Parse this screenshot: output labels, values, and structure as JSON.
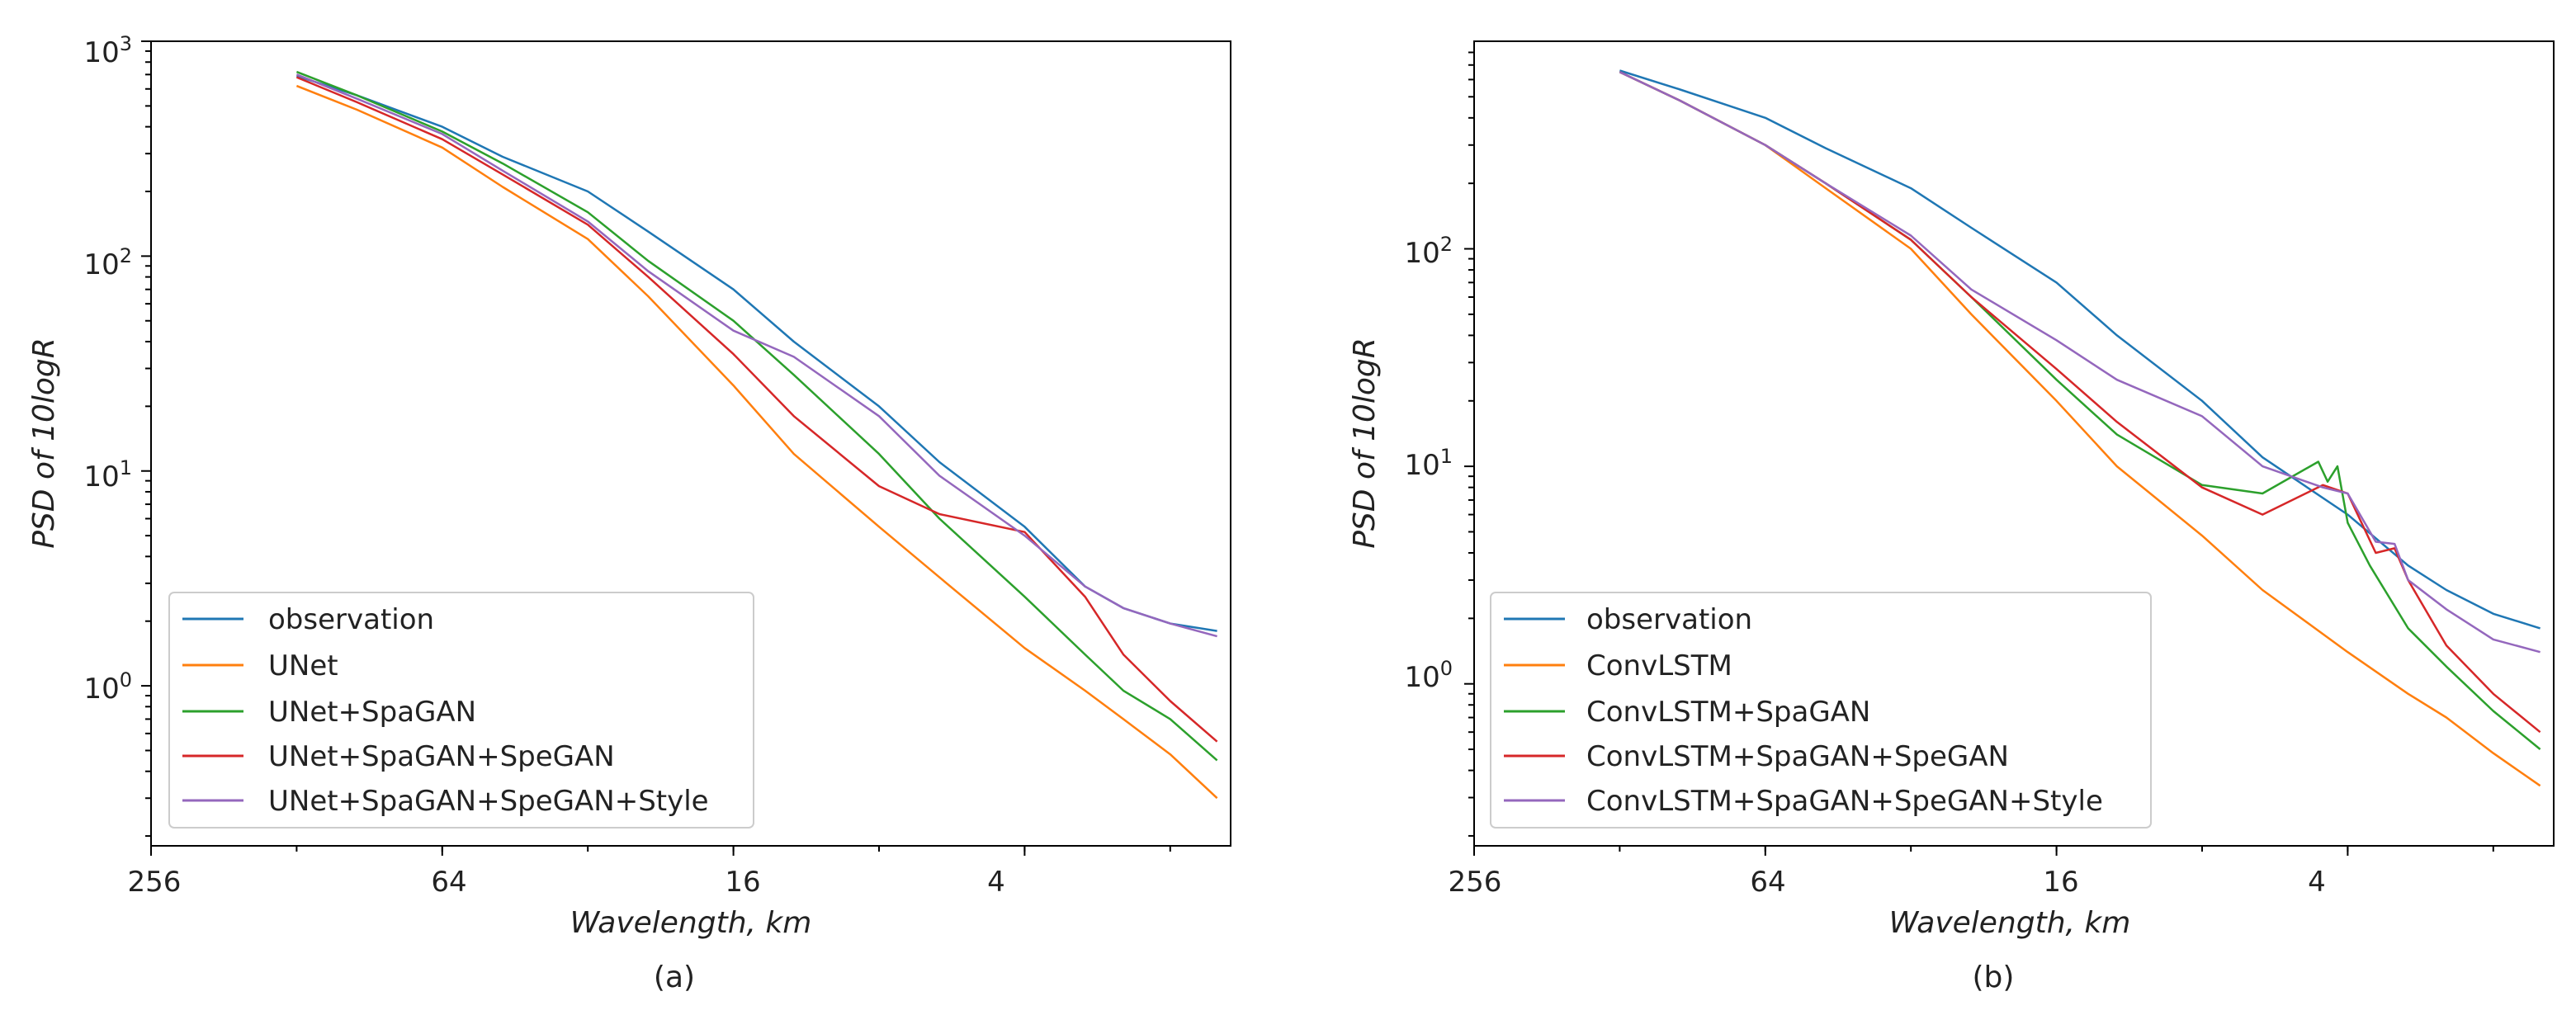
{
  "figure": {
    "panels": [
      {
        "caption": "(a)",
        "ylabel": "PSD of 10logR",
        "xlabel": "Wavelength, km",
        "legend_position": "lower-left",
        "chart_data": {
          "type": "line",
          "xscale": "log2-reversed",
          "yscale": "log10",
          "x_unit": "km",
          "xlim": [
            256,
            1.5
          ],
          "ylim": [
            0.18,
            1000
          ],
          "xticks": [
            "256",
            "64",
            "16",
            "4"
          ],
          "yticks": [
            {
              "base": "10",
              "exp": "3"
            },
            {
              "base": "10",
              "exp": "2"
            },
            {
              "base": "10",
              "exp": "1"
            },
            {
              "base": "10",
              "exp": "0"
            }
          ],
          "series": [
            {
              "name": "observation",
              "color": "#1f77b4",
              "x": [
                128,
                96,
                64,
                48,
                32,
                24,
                16,
                12,
                8,
                6,
                4,
                3,
                2.5,
                2,
                1.6
              ],
              "y": [
                690,
                560,
                400,
                290,
                200,
                130,
                70,
                40,
                20,
                11,
                5.5,
                2.9,
                2.3,
                1.95,
                1.8
              ]
            },
            {
              "name": "UNet",
              "color": "#ff7f0e",
              "x": [
                128,
                96,
                64,
                48,
                32,
                24,
                16,
                12,
                8,
                6,
                4,
                3,
                2.5,
                2,
                1.6
              ],
              "y": [
                620,
                480,
                320,
                210,
                120,
                65,
                25,
                12,
                5.5,
                3.2,
                1.5,
                0.95,
                0.7,
                0.48,
                0.3
              ]
            },
            {
              "name": "UNet+SpaGAN",
              "color": "#2ca02c",
              "x": [
                128,
                96,
                64,
                48,
                32,
                24,
                16,
                12,
                8,
                6,
                4,
                3,
                2.5,
                2,
                1.6
              ],
              "y": [
                720,
                560,
                380,
                270,
                160,
                95,
                50,
                28,
                12,
                6,
                2.6,
                1.4,
                0.95,
                0.7,
                0.45
              ]
            },
            {
              "name": "UNet+SpaGAN+SpeGAN",
              "color": "#d62728",
              "x": [
                128,
                96,
                64,
                48,
                32,
                24,
                16,
                12,
                8,
                6,
                4,
                3,
                2.5,
                2,
                1.6
              ],
              "y": [
                680,
                520,
                350,
                240,
                140,
                80,
                35,
                18,
                8.5,
                6.3,
                5.2,
                2.6,
                1.4,
                0.85,
                0.55
              ]
            },
            {
              "name": "UNet+SpaGAN+SpeGAN+Style",
              "color": "#9467bd",
              "x": [
                128,
                96,
                64,
                48,
                32,
                24,
                16,
                12,
                8,
                6,
                4,
                3,
                2.5,
                2,
                1.6
              ],
              "y": [
                700,
                540,
                370,
                250,
                145,
                85,
                45,
                34,
                18,
                9.5,
                5,
                2.9,
                2.3,
                1.95,
                1.7
              ]
            }
          ]
        }
      },
      {
        "caption": "(b)",
        "ylabel": "PSD of 10logR",
        "xlabel": "Wavelength, km",
        "legend_position": "lower-left",
        "chart_data": {
          "type": "line",
          "xscale": "log2-reversed",
          "yscale": "log10",
          "x_unit": "km",
          "xlim": [
            256,
            1.5
          ],
          "ylim": [
            0.18,
            900
          ],
          "xticks": [
            "256",
            "64",
            "16",
            "4"
          ],
          "yticks": [
            {
              "base": "10",
              "exp": "2"
            },
            {
              "base": "10",
              "exp": "1"
            },
            {
              "base": "10",
              "exp": "0"
            }
          ],
          "series": [
            {
              "name": "observation",
              "color": "#1f77b4",
              "x": [
                128,
                96,
                64,
                48,
                32,
                24,
                16,
                12,
                8,
                6,
                4,
                3,
                2.5,
                2,
                1.6
              ],
              "y": [
                660,
                540,
                400,
                290,
                190,
                125,
                70,
                40,
                20,
                11,
                6,
                3.5,
                2.7,
                2.1,
                1.8
              ]
            },
            {
              "name": "ConvLSTM",
              "color": "#ff7f0e",
              "x": [
                128,
                96,
                64,
                48,
                32,
                24,
                16,
                12,
                8,
                6,
                4,
                3,
                2.5,
                2,
                1.6
              ],
              "y": [
                650,
                480,
                300,
                190,
                100,
                50,
                20,
                10,
                4.8,
                2.7,
                1.4,
                0.9,
                0.7,
                0.48,
                0.34
              ]
            },
            {
              "name": "ConvLSTM+SpaGAN",
              "color": "#2ca02c",
              "x": [
                128,
                96,
                64,
                48,
                32,
                24,
                16,
                12,
                8,
                6,
                4.6,
                4.4,
                4.2,
                4,
                3.6,
                3,
                2.5,
                2,
                1.6
              ],
              "y": [
                650,
                480,
                300,
                200,
                110,
                60,
                25,
                14,
                8.2,
                7.5,
                10.5,
                8.5,
                10,
                5.5,
                3.5,
                1.8,
                1.2,
                0.75,
                0.5
              ]
            },
            {
              "name": "ConvLSTM+SpaGAN+SpeGAN",
              "color": "#d62728",
              "x": [
                128,
                96,
                64,
                48,
                32,
                24,
                16,
                12,
                8,
                6,
                4.5,
                4,
                3.5,
                3.2,
                3,
                2.5,
                2,
                1.6
              ],
              "y": [
                650,
                480,
                300,
                200,
                110,
                60,
                28,
                16,
                8,
                6,
                8.2,
                7.5,
                4,
                4.2,
                3,
                1.5,
                0.9,
                0.6
              ]
            },
            {
              "name": "ConvLSTM+SpaGAN+SpeGAN+Style",
              "color": "#9467bd",
              "x": [
                128,
                96,
                64,
                48,
                32,
                24,
                16,
                12,
                8,
                6,
                4.5,
                4,
                3.5,
                3.2,
                3,
                2.5,
                2,
                1.6
              ],
              "y": [
                650,
                480,
                300,
                200,
                115,
                65,
                38,
                25,
                17,
                10,
                8,
                7.5,
                4.5,
                4.4,
                3,
                2.2,
                1.6,
                1.4
              ]
            }
          ]
        }
      }
    ]
  }
}
